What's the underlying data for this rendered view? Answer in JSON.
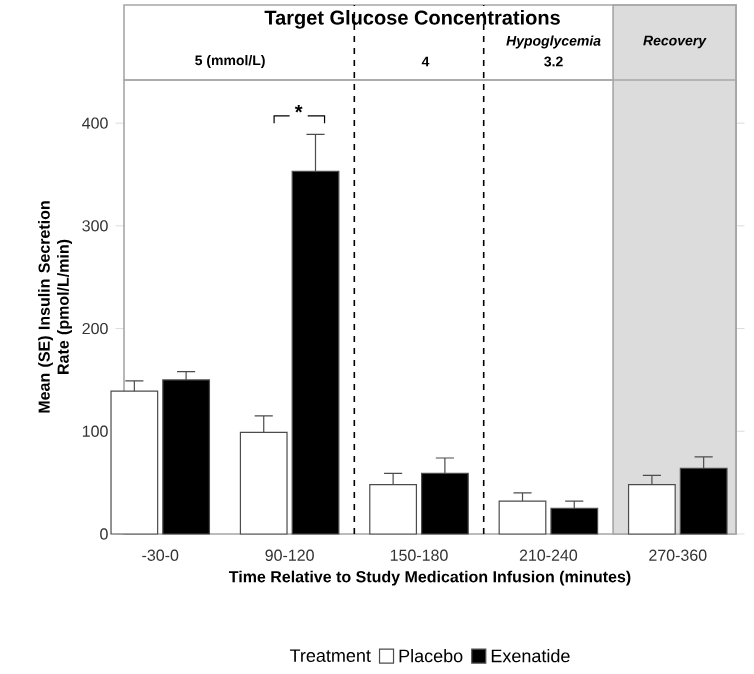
{
  "chart_data": {
    "type": "bar",
    "categories": [
      "-30-0",
      "90-120",
      "150-180",
      "210-240",
      "270-360"
    ],
    "series": [
      {
        "name": "Placebo",
        "color": "#ffffff",
        "values": [
          139,
          99,
          48,
          32,
          48
        ],
        "errors": [
          [
            139,
            149
          ],
          [
            99,
            115
          ],
          [
            48,
            59
          ],
          [
            32,
            40
          ],
          [
            48,
            57
          ]
        ]
      },
      {
        "name": "Exenatide",
        "color": "#000000",
        "values": [
          150,
          353,
          59,
          25,
          64
        ],
        "errors": [
          [
            150,
            158
          ],
          [
            353,
            389
          ],
          [
            59,
            74
          ],
          [
            25,
            32
          ],
          [
            64,
            75
          ]
        ]
      }
    ],
    "xlabel": "Time Relative to Study Medication Infusion (minutes)",
    "ylabel": "Mean (SE) Insulin Secretion Rate (pmol/L/min)",
    "legend_title": "Treatment",
    "ylim": [
      0,
      442
    ],
    "yticks": [
      0,
      100,
      200,
      300,
      400
    ],
    "bands": [
      {
        "axis": "x",
        "from": "270-360",
        "to": "270-360",
        "label": "Recovery",
        "color": "#dcdcdc"
      }
    ],
    "annotations": [
      "Target Glucose Concentrations",
      "5 (mmol/L)",
      "4",
      "Hypoglycemia",
      "3.2",
      "*"
    ],
    "legend": "bottom",
    "grid": false
  }
}
